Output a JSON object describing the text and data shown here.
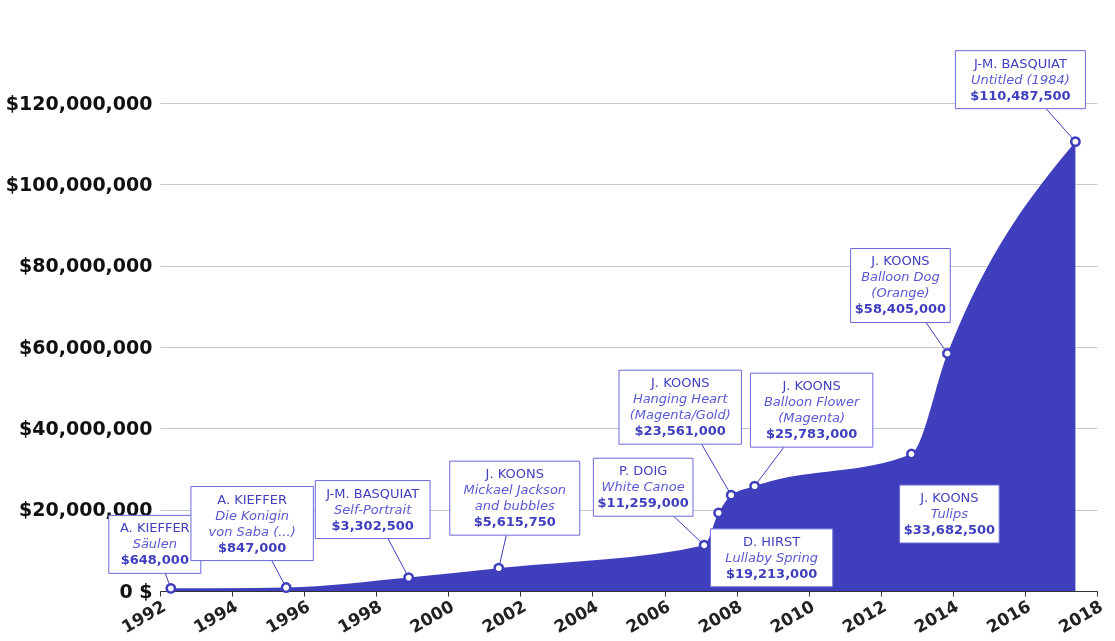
{
  "chart_data": {
    "type": "area",
    "x": [
      1992.3,
      1995.5,
      1998.9,
      2001.4,
      2007.1,
      2007.5,
      2007.85,
      2008.5,
      2012.85,
      2013.85,
      2017.4
    ],
    "series": [
      {
        "color": "#3f3fbd",
        "values": [
          648000,
          847000,
          3302500,
          5615750,
          11259000,
          19213000,
          23561000,
          25783000,
          33682500,
          58405000,
          110487500
        ]
      }
    ],
    "marker": "circle",
    "xlim": [
      1992,
      2018
    ],
    "xticks": [
      1992,
      1994,
      1996,
      1998,
      2000,
      2002,
      2004,
      2006,
      2008,
      2010,
      2012,
      2014,
      2016,
      2018
    ],
    "ylim": [
      0,
      120000000
    ],
    "yticks": [
      {
        "value": 0,
        "label": "0 $"
      },
      {
        "value": 20000000,
        "label": "$20,000,000"
      },
      {
        "value": 40000000,
        "label": "$40,000,000"
      },
      {
        "value": 60000000,
        "label": "$60,000,000"
      },
      {
        "value": 80000000,
        "label": "$80,000,000"
      },
      {
        "value": 100000000,
        "label": "$100,000,000"
      },
      {
        "value": 120000000,
        "label": "$120,000,000"
      }
    ],
    "grid": "y",
    "annotations": [
      {
        "text": "A. KIEFFER\nSäulen\n$648,000",
        "x": 1992.3,
        "y": 648000
      },
      {
        "text": "A. KIEFFER\nDie Konigin\nvon Saba (...)\n$847,000",
        "x": 1995.5,
        "y": 847000
      },
      {
        "text": "J-M. BASQUIAT\nSelf-Portrait\n$3,302,500",
        "x": 1998.9,
        "y": 3302500
      },
      {
        "text": "J. KOONS\nMickael Jackson\nand bubbles\n$5,615,750",
        "x": 2001.4,
        "y": 5615750
      },
      {
        "text": "P. DOIG\nWhite Canoe\n$11,259,000",
        "x": 2007.1,
        "y": 11259000
      },
      {
        "text": "D. HIRST\nLullaby Spring\n$19,213,000",
        "x": 2007.5,
        "y": 19213000
      },
      {
        "text": "J. KOONS\nHanging Heart\n(Magenta/Gold)\n$23,561,000",
        "x": 2007.85,
        "y": 23561000
      },
      {
        "text": "J. KOONS\nBalloon Flower\n(Magenta)\n$25,783,000",
        "x": 2008.5,
        "y": 25783000
      },
      {
        "text": "J. KOONS\nTulips\n$33,682,500",
        "x": 2012.85,
        "y": 33682500
      },
      {
        "text": "J. KOONS\nBalloon Dog\n(Orange)\n$58,405,000",
        "x": 2013.85,
        "y": 58405000
      },
      {
        "text": "J-M. BASQUIAT\nUntitled (1984)\n$110,487,500",
        "x": 2017.4,
        "y": 110487500
      }
    ]
  }
}
